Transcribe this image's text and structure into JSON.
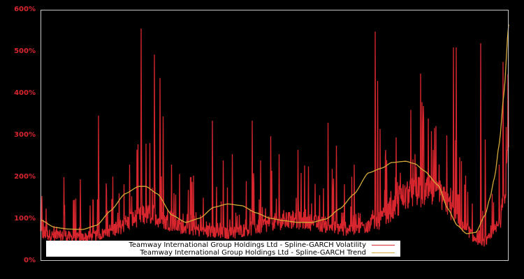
{
  "chart_data": {
    "type": "line",
    "title": "",
    "xlabel": "",
    "ylabel": "",
    "ylim": [
      0,
      600
    ],
    "y_ticks": [
      "0%",
      "100%",
      "200%",
      "300%",
      "400%",
      "500%",
      "600%"
    ],
    "y_tick_values": [
      0,
      100,
      200,
      300,
      400,
      500,
      600
    ],
    "grid": false,
    "legend_position": "lower left (inside plot)",
    "colors": {
      "background": "#000000",
      "axis_frame": "#c8c8c8",
      "tick_label": "#d8262e",
      "volatility": "#d8262e",
      "trend": "#d4a93a"
    },
    "series": [
      {
        "name": "Teamway International Group Holdings Ltd - Spline-GARCH Volatility",
        "color": "#d8262e",
        "description": "Noisy daily volatility; baseline follows trend roughly 30-40% below it, with frequent spikes",
        "x_frac": [
          0.0,
          0.03,
          0.08,
          0.12,
          0.16,
          0.21,
          0.22,
          0.245,
          0.255,
          0.3,
          0.35,
          0.4,
          0.45,
          0.5,
          0.55,
          0.6,
          0.65,
          0.7,
          0.72,
          0.75,
          0.78,
          0.8,
          0.83,
          0.86,
          0.88,
          0.91,
          0.93,
          0.95,
          0.96,
          0.98,
          0.99,
          1.0
        ],
        "baseline": [
          60,
          55,
          50,
          55,
          70,
          95,
          100,
          100,
          90,
          75,
          65,
          60,
          70,
          85,
          88,
          80,
          70,
          75,
          85,
          110,
          140,
          150,
          150,
          135,
          110,
          70,
          45,
          40,
          50,
          80,
          130,
          260
        ],
        "spikes": [
          {
            "x_frac": 0.003,
            "value": 155
          },
          {
            "x_frac": 0.05,
            "value": 200
          },
          {
            "x_frac": 0.07,
            "value": 145
          },
          {
            "x_frac": 0.085,
            "value": 195
          },
          {
            "x_frac": 0.124,
            "value": 347
          },
          {
            "x_frac": 0.14,
            "value": 185
          },
          {
            "x_frac": 0.19,
            "value": 230
          },
          {
            "x_frac": 0.215,
            "value": 555
          },
          {
            "x_frac": 0.225,
            "value": 280
          },
          {
            "x_frac": 0.243,
            "value": 493
          },
          {
            "x_frac": 0.255,
            "value": 437
          },
          {
            "x_frac": 0.262,
            "value": 345
          },
          {
            "x_frac": 0.28,
            "value": 230
          },
          {
            "x_frac": 0.32,
            "value": 200
          },
          {
            "x_frac": 0.367,
            "value": 335
          },
          {
            "x_frac": 0.39,
            "value": 240
          },
          {
            "x_frac": 0.41,
            "value": 255
          },
          {
            "x_frac": 0.452,
            "value": 335
          },
          {
            "x_frac": 0.47,
            "value": 240
          },
          {
            "x_frac": 0.492,
            "value": 298
          },
          {
            "x_frac": 0.51,
            "value": 255
          },
          {
            "x_frac": 0.55,
            "value": 265
          },
          {
            "x_frac": 0.614,
            "value": 330
          },
          {
            "x_frac": 0.632,
            "value": 275
          },
          {
            "x_frac": 0.67,
            "value": 230
          },
          {
            "x_frac": 0.715,
            "value": 548
          },
          {
            "x_frac": 0.72,
            "value": 430
          },
          {
            "x_frac": 0.725,
            "value": 315
          },
          {
            "x_frac": 0.76,
            "value": 295
          },
          {
            "x_frac": 0.8,
            "value": 255
          },
          {
            "x_frac": 0.818,
            "value": 370
          },
          {
            "x_frac": 0.828,
            "value": 340
          },
          {
            "x_frac": 0.835,
            "value": 310
          },
          {
            "x_frac": 0.845,
            "value": 322
          },
          {
            "x_frac": 0.868,
            "value": 300
          },
          {
            "x_frac": 0.882,
            "value": 510
          },
          {
            "x_frac": 0.888,
            "value": 510
          },
          {
            "x_frac": 0.94,
            "value": 520
          },
          {
            "x_frac": 0.95,
            "value": 290
          },
          {
            "x_frac": 0.965,
            "value": 160
          },
          {
            "x_frac": 0.98,
            "value": 230
          },
          {
            "x_frac": 0.988,
            "value": 475
          },
          {
            "x_frac": 0.995,
            "value": 320
          }
        ]
      },
      {
        "name": "Teamway International Group Holdings Ltd - Spline-GARCH Trend",
        "color": "#d4a93a",
        "x_frac": [
          0.0,
          0.03,
          0.06,
          0.09,
          0.12,
          0.15,
          0.18,
          0.21,
          0.225,
          0.25,
          0.28,
          0.31,
          0.34,
          0.37,
          0.4,
          0.43,
          0.46,
          0.49,
          0.52,
          0.55,
          0.58,
          0.61,
          0.64,
          0.67,
          0.7,
          0.73,
          0.75,
          0.78,
          0.8,
          0.82,
          0.85,
          0.87,
          0.89,
          0.91,
          0.93,
          0.95,
          0.96,
          0.97,
          0.98,
          0.99,
          1.0
        ],
        "values": [
          98,
          80,
          76,
          75,
          85,
          120,
          160,
          178,
          178,
          160,
          110,
          92,
          102,
          128,
          136,
          132,
          115,
          102,
          96,
          92,
          92,
          100,
          125,
          160,
          210,
          222,
          235,
          238,
          232,
          215,
          180,
          125,
          85,
          65,
          68,
          110,
          150,
          200,
          280,
          400,
          565
        ]
      }
    ],
    "legend": [
      {
        "label": "Teamway International Group Holdings Ltd - Spline-GARCH Volatility",
        "color": "#d8262e"
      },
      {
        "label": "Teamway International Group Holdings Ltd - Spline-GARCH Trend",
        "color": "#d4a93a"
      }
    ]
  }
}
